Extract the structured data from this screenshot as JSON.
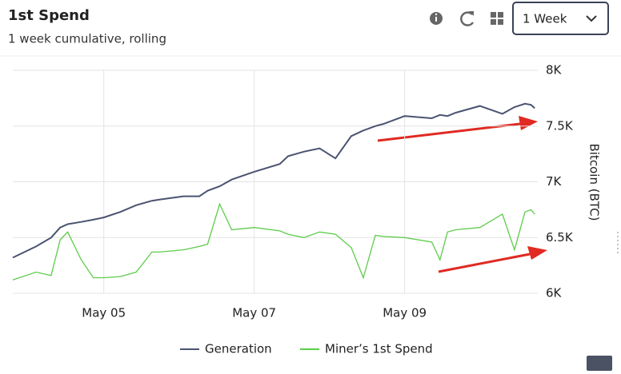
{
  "chart_data": {
    "type": "line",
    "title": "1st Spend",
    "subtitle": "1 week cumulative, rolling",
    "range_selector": "1 Week",
    "y_label": "Bitcoin (BTC)",
    "x": [
      3.79,
      4.1,
      4.3,
      4.42,
      4.52,
      4.7,
      4.86,
      5.0,
      5.22,
      5.43,
      5.64,
      5.74,
      6.06,
      6.27,
      6.38,
      6.54,
      6.7,
      7.0,
      7.34,
      7.45,
      7.66,
      7.87,
      8.08,
      8.29,
      8.45,
      8.61,
      8.72,
      9.0,
      9.36,
      9.47,
      9.57,
      9.68,
      10.0,
      10.3,
      10.46,
      10.6,
      10.68,
      10.73
    ],
    "xlim": [
      3.79,
      10.77
    ],
    "xticks": [
      {
        "value": 5,
        "label": "May 05"
      },
      {
        "value": 7,
        "label": "May 07"
      },
      {
        "value": 9,
        "label": "May 09"
      }
    ],
    "ylim": [
      6000,
      8000
    ],
    "yticks": [
      {
        "value": 6000,
        "label": "6K"
      },
      {
        "value": 6500,
        "label": "6.5K"
      },
      {
        "value": 7000,
        "label": "7K"
      },
      {
        "value": 7500,
        "label": "7.5K"
      },
      {
        "value": 8000,
        "label": "8K"
      }
    ],
    "grid": true,
    "series": [
      {
        "name": "Generation",
        "color": "#4a5370",
        "values": [
          6320,
          6420,
          6500,
          6590,
          6620,
          6640,
          6660,
          6680,
          6730,
          6790,
          6830,
          6840,
          6870,
          6870,
          6920,
          6960,
          7020,
          7090,
          7160,
          7230,
          7270,
          7300,
          7210,
          7410,
          7460,
          7500,
          7520,
          7590,
          7570,
          7600,
          7590,
          7620,
          7680,
          7610,
          7670,
          7700,
          7690,
          7660
        ]
      },
      {
        "name": "Miner’s 1st Spend",
        "color": "#5dcc4a",
        "values": [
          6120,
          6190,
          6160,
          6480,
          6550,
          6300,
          6140,
          6140,
          6150,
          6190,
          6370,
          6370,
          6390,
          6420,
          6440,
          6800,
          6570,
          6590,
          6560,
          6530,
          6500,
          6550,
          6530,
          6410,
          6140,
          6520,
          6510,
          6500,
          6460,
          6300,
          6550,
          6570,
          6590,
          6710,
          6390,
          6730,
          6750,
          6710
        ]
      }
    ],
    "legend": "bottom"
  }
}
